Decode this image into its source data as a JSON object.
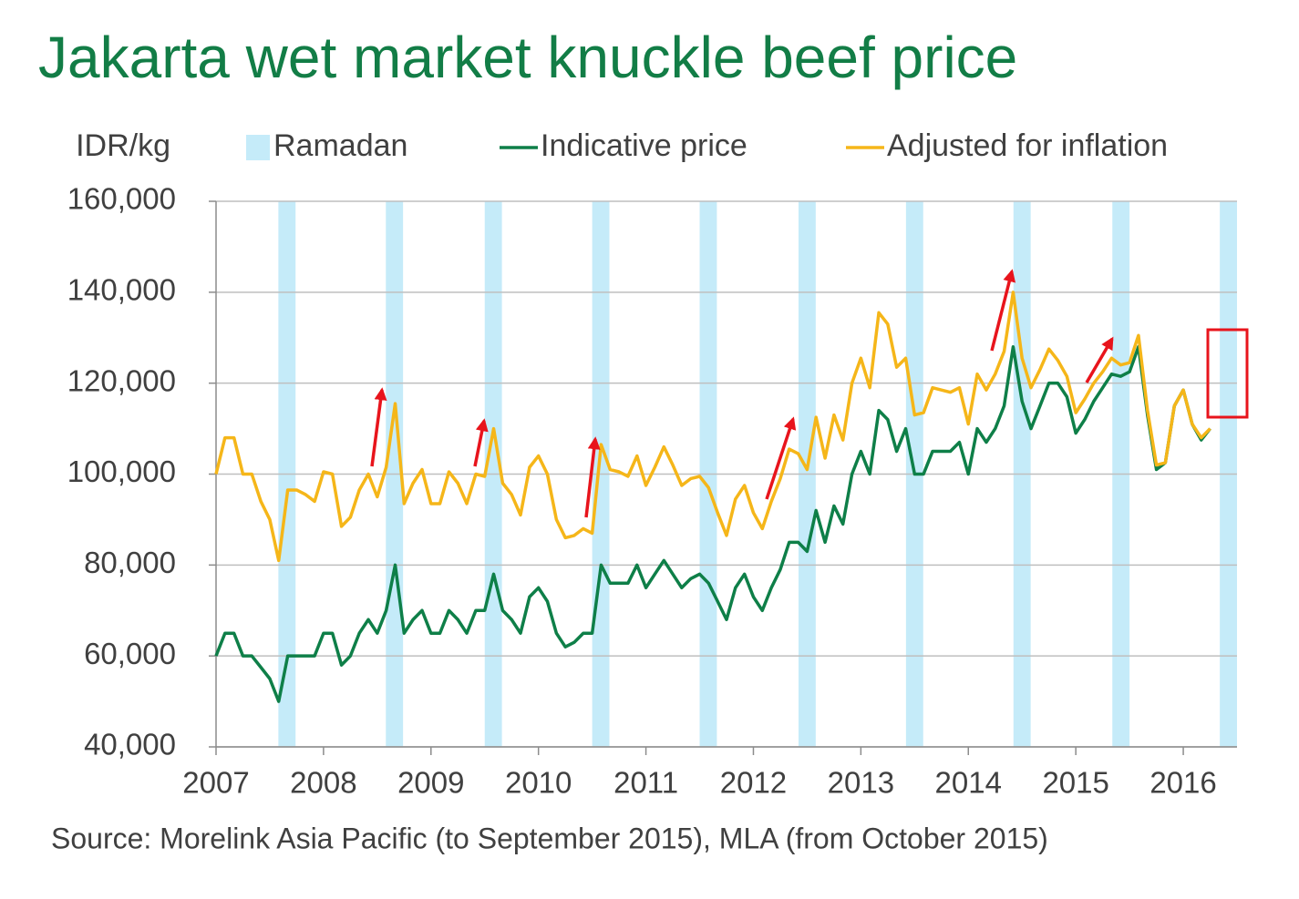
{
  "chart_data": {
    "type": "line",
    "title": "Jakarta wet market knuckle beef price",
    "y_label": "IDR/kg",
    "source": "Source: Morelink Asia Pacific (to September 2015), MLA (from October 2015)",
    "xlim": [
      2007,
      2016.5
    ],
    "xticks": [
      2007,
      2008,
      2009,
      2010,
      2011,
      2012,
      2013,
      2014,
      2015,
      2016
    ],
    "ylim": [
      40000,
      160000
    ],
    "yticks": [
      {
        "value": 40000,
        "label": "40,000"
      },
      {
        "value": 60000,
        "label": "60,000"
      },
      {
        "value": 80000,
        "label": "80,000"
      },
      {
        "value": 100000,
        "label": "100,000"
      },
      {
        "value": 120000,
        "label": "120,000"
      },
      {
        "value": 140000,
        "label": "140,000"
      },
      {
        "value": 160000,
        "label": "160,000"
      }
    ],
    "grid": true,
    "bands": {
      "name": "Ramadan",
      "color": "#c5ebf9",
      "ranges": [
        [
          2007.58,
          2007.74
        ],
        [
          2008.58,
          2008.74
        ],
        [
          2009.5,
          2009.66
        ],
        [
          2010.5,
          2010.66
        ],
        [
          2011.5,
          2011.66
        ],
        [
          2012.42,
          2012.58
        ],
        [
          2013.42,
          2013.58
        ],
        [
          2014.42,
          2014.58
        ],
        [
          2015.34,
          2015.5
        ],
        [
          2016.34,
          2016.5
        ]
      ]
    },
    "x": [
      2007,
      2007.083,
      2007.167,
      2007.25,
      2007.333,
      2007.417,
      2007.5,
      2007.583,
      2007.667,
      2007.75,
      2007.833,
      2007.917,
      2008,
      2008.083,
      2008.167,
      2008.25,
      2008.333,
      2008.417,
      2008.5,
      2008.583,
      2008.667,
      2008.75,
      2008.833,
      2008.917,
      2009,
      2009.083,
      2009.167,
      2009.25,
      2009.333,
      2009.417,
      2009.5,
      2009.583,
      2009.667,
      2009.75,
      2009.833,
      2009.917,
      2010,
      2010.083,
      2010.167,
      2010.25,
      2010.333,
      2010.417,
      2010.5,
      2010.583,
      2010.667,
      2010.75,
      2010.833,
      2010.917,
      2011,
      2011.083,
      2011.167,
      2011.25,
      2011.333,
      2011.417,
      2011.5,
      2011.583,
      2011.667,
      2011.75,
      2011.833,
      2011.917,
      2012,
      2012.083,
      2012.167,
      2012.25,
      2012.333,
      2012.417,
      2012.5,
      2012.583,
      2012.667,
      2012.75,
      2012.833,
      2012.917,
      2013,
      2013.083,
      2013.167,
      2013.25,
      2013.333,
      2013.417,
      2013.5,
      2013.583,
      2013.667,
      2013.75,
      2013.833,
      2013.917,
      2014,
      2014.083,
      2014.167,
      2014.25,
      2014.333,
      2014.417,
      2014.5,
      2014.583,
      2014.667,
      2014.75,
      2014.833,
      2014.917,
      2015,
      2015.083,
      2015.167,
      2015.25,
      2015.333,
      2015.417,
      2015.5,
      2015.583,
      2015.667,
      2015.75,
      2015.833,
      2015.917,
      2016,
      2016.083,
      2016.167,
      2016.25
    ],
    "series": [
      {
        "name": "Indicative price",
        "color": "#0e7f48",
        "values": [
          60000,
          65000,
          65000,
          60000,
          60000,
          57500,
          55000,
          50000,
          60000,
          60000,
          60000,
          60000,
          65000,
          65000,
          58000,
          60000,
          65000,
          68000,
          65000,
          70000,
          80000,
          65000,
          68000,
          70000,
          65000,
          65000,
          70000,
          68000,
          65000,
          70000,
          70000,
          78000,
          70000,
          68000,
          65000,
          73000,
          75000,
          72000,
          65000,
          62000,
          63000,
          65000,
          65000,
          80000,
          76000,
          76000,
          76000,
          80000,
          75000,
          78000,
          81000,
          78000,
          75000,
          77000,
          78000,
          76000,
          72000,
          68000,
          75000,
          78000,
          73000,
          70000,
          75000,
          79000,
          85000,
          85000,
          83000,
          92000,
          85000,
          93000,
          89000,
          100000,
          105000,
          100000,
          114000,
          112000,
          105000,
          110000,
          100000,
          100000,
          105000,
          105000,
          105000,
          107000,
          100000,
          110000,
          107000,
          110000,
          115000,
          128000,
          116000,
          110000,
          115000,
          120000,
          120000,
          117000,
          109000,
          112000,
          116000,
          119000,
          122000,
          121500,
          122500,
          128000,
          113000,
          101000,
          102500,
          115000,
          118500,
          111000,
          107500,
          110000
        ]
      },
      {
        "name": "Adjusted for inflation",
        "color": "#f5b619",
        "values": [
          100000,
          108000,
          108000,
          100000,
          100000,
          94000,
          90000,
          81000,
          96500,
          96500,
          95500,
          94000,
          100500,
          100000,
          88500,
          90500,
          96500,
          100000,
          95000,
          101500,
          115500,
          93500,
          98000,
          101000,
          93500,
          93500,
          100500,
          98000,
          93500,
          100000,
          99500,
          110000,
          98000,
          95500,
          91000,
          101500,
          104000,
          100000,
          90000,
          86000,
          86500,
          88000,
          87000,
          106500,
          101000,
          100500,
          99500,
          104000,
          97500,
          101500,
          106000,
          102000,
          97500,
          99000,
          99500,
          97000,
          91500,
          86500,
          94500,
          97500,
          91500,
          88000,
          94000,
          99000,
          105500,
          104500,
          101000,
          112500,
          103500,
          113000,
          107500,
          120000,
          125500,
          119000,
          135500,
          133000,
          123500,
          125500,
          113000,
          113500,
          119000,
          118500,
          118000,
          119000,
          111000,
          122000,
          118500,
          122000,
          127000,
          140000,
          125500,
          119000,
          123000,
          127500,
          125000,
          121500,
          113500,
          116500,
          120000,
          122500,
          125500,
          124000,
          124500,
          130500,
          114000,
          102000,
          102500,
          115000,
          118500,
          111000,
          108000,
          110000
        ]
      }
    ]
  }
}
